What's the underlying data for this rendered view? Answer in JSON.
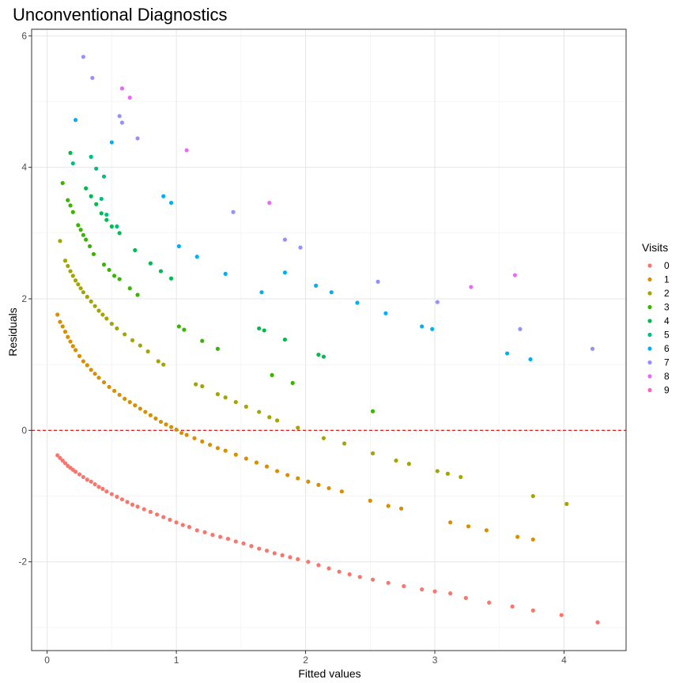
{
  "chart_data": {
    "type": "scatter",
    "title": "Unconventional Diagnostics",
    "xlabel": "Fitted values",
    "ylabel": "Residuals",
    "xlim": [
      -0.12,
      4.48
    ],
    "ylim": [
      -3.35,
      6.1
    ],
    "x_ticks": [
      0,
      1,
      2,
      3,
      4
    ],
    "y_ticks": [
      -2,
      0,
      2,
      4,
      6
    ],
    "grid": true,
    "reference_line": {
      "y": 0,
      "color": "#e31a1c",
      "style": "dashed"
    },
    "legend": {
      "title": "Visits",
      "position": "right"
    },
    "series": [
      {
        "name": "0",
        "color": "#F8766D",
        "points": [
          [
            0.08,
            -0.38
          ],
          [
            0.1,
            -0.42
          ],
          [
            0.12,
            -0.46
          ],
          [
            0.14,
            -0.5
          ],
          [
            0.16,
            -0.54
          ],
          [
            0.18,
            -0.57
          ],
          [
            0.2,
            -0.6
          ],
          [
            0.22,
            -0.63
          ],
          [
            0.25,
            -0.67
          ],
          [
            0.28,
            -0.71
          ],
          [
            0.31,
            -0.75
          ],
          [
            0.34,
            -0.78
          ],
          [
            0.37,
            -0.82
          ],
          [
            0.4,
            -0.86
          ],
          [
            0.43,
            -0.89
          ],
          [
            0.46,
            -0.93
          ],
          [
            0.5,
            -0.97
          ],
          [
            0.54,
            -1.01
          ],
          [
            0.58,
            -1.05
          ],
          [
            0.62,
            -1.09
          ],
          [
            0.66,
            -1.13
          ],
          [
            0.7,
            -1.16
          ],
          [
            0.75,
            -1.2
          ],
          [
            0.8,
            -1.24
          ],
          [
            0.85,
            -1.28
          ],
          [
            0.9,
            -1.32
          ],
          [
            0.95,
            -1.36
          ],
          [
            1.0,
            -1.4
          ],
          [
            1.05,
            -1.44
          ],
          [
            1.1,
            -1.47
          ],
          [
            1.16,
            -1.52
          ],
          [
            1.22,
            -1.55
          ],
          [
            1.28,
            -1.59
          ],
          [
            1.34,
            -1.62
          ],
          [
            1.4,
            -1.65
          ],
          [
            1.46,
            -1.69
          ],
          [
            1.52,
            -1.72
          ],
          [
            1.58,
            -1.76
          ],
          [
            1.64,
            -1.8
          ],
          [
            1.7,
            -1.83
          ],
          [
            1.76,
            -1.87
          ],
          [
            1.82,
            -1.9
          ],
          [
            1.88,
            -1.93
          ],
          [
            1.94,
            -1.96
          ],
          [
            2.02,
            -2.0
          ],
          [
            2.1,
            -2.05
          ],
          [
            2.18,
            -2.1
          ],
          [
            2.26,
            -2.15
          ],
          [
            2.34,
            -2.19
          ],
          [
            2.42,
            -2.23
          ],
          [
            2.52,
            -2.27
          ],
          [
            2.64,
            -2.32
          ],
          [
            2.76,
            -2.37
          ],
          [
            2.9,
            -2.42
          ],
          [
            3.0,
            -2.45
          ],
          [
            3.12,
            -2.48
          ],
          [
            3.24,
            -2.55
          ],
          [
            3.42,
            -2.62
          ],
          [
            3.6,
            -2.68
          ],
          [
            3.76,
            -2.74
          ],
          [
            3.98,
            -2.81
          ],
          [
            4.26,
            -2.92
          ]
        ]
      },
      {
        "name": "1",
        "color": "#D89000",
        "points": [
          [
            0.08,
            1.76
          ],
          [
            0.1,
            1.65
          ],
          [
            0.12,
            1.58
          ],
          [
            0.14,
            1.5
          ],
          [
            0.16,
            1.42
          ],
          [
            0.18,
            1.35
          ],
          [
            0.2,
            1.28
          ],
          [
            0.22,
            1.22
          ],
          [
            0.25,
            1.13
          ],
          [
            0.28,
            1.05
          ],
          [
            0.31,
            0.99
          ],
          [
            0.34,
            0.92
          ],
          [
            0.37,
            0.86
          ],
          [
            0.4,
            0.8
          ],
          [
            0.44,
            0.73
          ],
          [
            0.48,
            0.66
          ],
          [
            0.52,
            0.6
          ],
          [
            0.56,
            0.54
          ],
          [
            0.6,
            0.48
          ],
          [
            0.64,
            0.43
          ],
          [
            0.68,
            0.38
          ],
          [
            0.72,
            0.33
          ],
          [
            0.76,
            0.28
          ],
          [
            0.8,
            0.23
          ],
          [
            0.84,
            0.18
          ],
          [
            0.88,
            0.13
          ],
          [
            0.92,
            0.09
          ],
          [
            0.96,
            0.05
          ],
          [
            1.0,
            0.01
          ],
          [
            1.04,
            -0.04
          ],
          [
            1.08,
            -0.07
          ],
          [
            1.14,
            -0.12
          ],
          [
            1.2,
            -0.17
          ],
          [
            1.26,
            -0.22
          ],
          [
            1.32,
            -0.27
          ],
          [
            1.38,
            -0.31
          ],
          [
            1.46,
            -0.37
          ],
          [
            1.54,
            -0.43
          ],
          [
            1.62,
            -0.49
          ],
          [
            1.7,
            -0.55
          ],
          [
            1.78,
            -0.62
          ],
          [
            1.86,
            -0.68
          ],
          [
            1.94,
            -0.73
          ],
          [
            2.02,
            -0.78
          ],
          [
            2.1,
            -0.83
          ],
          [
            2.18,
            -0.88
          ],
          [
            2.28,
            -0.93
          ],
          [
            2.5,
            -1.07
          ],
          [
            2.64,
            -1.15
          ],
          [
            2.74,
            -1.19
          ],
          [
            3.12,
            -1.4
          ],
          [
            3.26,
            -1.46
          ],
          [
            3.4,
            -1.52
          ],
          [
            3.64,
            -1.62
          ],
          [
            3.76,
            -1.66
          ]
        ]
      },
      {
        "name": "2",
        "color": "#A3A500",
        "points": [
          [
            0.1,
            2.88
          ],
          [
            0.14,
            2.58
          ],
          [
            0.16,
            2.5
          ],
          [
            0.18,
            2.42
          ],
          [
            0.2,
            2.35
          ],
          [
            0.22,
            2.28
          ],
          [
            0.24,
            2.22
          ],
          [
            0.26,
            2.16
          ],
          [
            0.28,
            2.1
          ],
          [
            0.31,
            2.03
          ],
          [
            0.34,
            1.96
          ],
          [
            0.37,
            1.89
          ],
          [
            0.4,
            1.82
          ],
          [
            0.43,
            1.76
          ],
          [
            0.46,
            1.7
          ],
          [
            0.5,
            1.62
          ],
          [
            0.54,
            1.55
          ],
          [
            0.6,
            1.46
          ],
          [
            0.66,
            1.37
          ],
          [
            0.72,
            1.29
          ],
          [
            0.78,
            1.2
          ],
          [
            0.86,
            1.05
          ],
          [
            0.9,
            1.0
          ],
          [
            1.15,
            0.7
          ],
          [
            1.2,
            0.67
          ],
          [
            1.32,
            0.55
          ],
          [
            1.38,
            0.5
          ],
          [
            1.46,
            0.43
          ],
          [
            1.54,
            0.36
          ],
          [
            1.64,
            0.28
          ],
          [
            1.72,
            0.2
          ],
          [
            1.78,
            0.15
          ],
          [
            1.94,
            0.04
          ],
          [
            2.14,
            -0.12
          ],
          [
            2.3,
            -0.2
          ],
          [
            2.52,
            -0.35
          ],
          [
            2.7,
            -0.46
          ],
          [
            2.8,
            -0.51
          ],
          [
            3.02,
            -0.62
          ],
          [
            3.1,
            -0.66
          ],
          [
            3.2,
            -0.71
          ],
          [
            3.76,
            -1.0
          ],
          [
            4.02,
            -1.12
          ]
        ]
      },
      {
        "name": "3",
        "color": "#39B600",
        "points": [
          [
            0.12,
            3.76
          ],
          [
            0.16,
            3.5
          ],
          [
            0.18,
            3.42
          ],
          [
            0.2,
            3.32
          ],
          [
            0.24,
            3.12
          ],
          [
            0.26,
            3.05
          ],
          [
            0.28,
            2.97
          ],
          [
            0.3,
            2.9
          ],
          [
            0.33,
            2.8
          ],
          [
            0.36,
            2.68
          ],
          [
            0.44,
            2.52
          ],
          [
            0.48,
            2.44
          ],
          [
            0.52,
            2.35
          ],
          [
            0.56,
            2.3
          ],
          [
            0.64,
            2.16
          ],
          [
            0.7,
            2.06
          ],
          [
            1.02,
            1.58
          ],
          [
            1.06,
            1.53
          ],
          [
            1.2,
            1.36
          ],
          [
            1.32,
            1.24
          ],
          [
            1.74,
            0.84
          ],
          [
            1.9,
            0.72
          ],
          [
            2.52,
            0.29
          ]
        ]
      },
      {
        "name": "4",
        "color": "#00BB4E",
        "points": [
          [
            0.18,
            4.22
          ],
          [
            0.3,
            3.68
          ],
          [
            0.34,
            3.56
          ],
          [
            0.38,
            3.44
          ],
          [
            0.42,
            3.3
          ],
          [
            0.46,
            3.2
          ],
          [
            0.5,
            3.1
          ],
          [
            0.56,
            3.0
          ],
          [
            0.68,
            2.74
          ],
          [
            0.8,
            2.54
          ],
          [
            0.88,
            2.42
          ],
          [
            0.96,
            2.31
          ],
          [
            1.64,
            1.55
          ],
          [
            1.68,
            1.52
          ],
          [
            1.84,
            1.38
          ],
          [
            2.1,
            1.15
          ],
          [
            2.14,
            1.12
          ]
        ]
      },
      {
        "name": "5",
        "color": "#00BF7D",
        "points": [
          [
            0.2,
            4.06
          ],
          [
            0.34,
            4.16
          ],
          [
            0.38,
            3.98
          ],
          [
            0.44,
            3.86
          ],
          [
            0.42,
            3.52
          ],
          [
            0.46,
            3.28
          ],
          [
            0.54,
            3.1
          ]
        ]
      },
      {
        "name": "6",
        "color": "#00B0F6",
        "points": [
          [
            0.22,
            4.72
          ],
          [
            0.5,
            4.38
          ],
          [
            0.9,
            3.56
          ],
          [
            0.96,
            3.46
          ],
          [
            1.02,
            2.8
          ],
          [
            1.16,
            2.64
          ],
          [
            1.38,
            2.38
          ],
          [
            1.66,
            2.1
          ],
          [
            1.84,
            2.4
          ],
          [
            2.08,
            2.2
          ],
          [
            2.2,
            2.1
          ],
          [
            2.4,
            1.94
          ],
          [
            2.62,
            1.78
          ],
          [
            2.9,
            1.58
          ],
          [
            2.98,
            1.54
          ],
          [
            3.56,
            1.17
          ],
          [
            3.74,
            1.08
          ]
        ]
      },
      {
        "name": "7",
        "color": "#9590FF",
        "points": [
          [
            0.28,
            5.68
          ],
          [
            0.35,
            5.36
          ],
          [
            0.56,
            4.78
          ],
          [
            0.58,
            4.68
          ],
          [
            0.7,
            4.44
          ],
          [
            1.44,
            3.32
          ],
          [
            1.84,
            2.9
          ],
          [
            1.96,
            2.78
          ],
          [
            2.56,
            2.26
          ],
          [
            3.02,
            1.95
          ],
          [
            3.66,
            1.54
          ],
          [
            4.22,
            1.24
          ]
        ]
      },
      {
        "name": "8",
        "color": "#E76BF3",
        "points": [
          [
            0.58,
            5.2
          ],
          [
            0.64,
            5.06
          ],
          [
            1.08,
            4.26
          ],
          [
            1.72,
            3.46
          ],
          [
            3.28,
            2.18
          ],
          [
            3.62,
            2.36
          ]
        ]
      },
      {
        "name": "9",
        "color": "#FF62BC",
        "points": []
      }
    ]
  }
}
